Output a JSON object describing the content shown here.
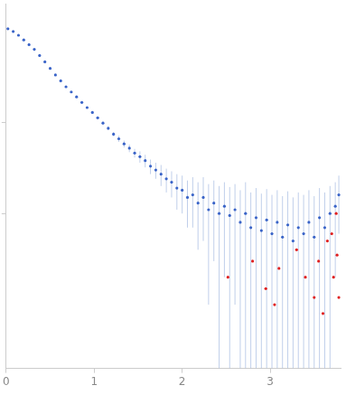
{
  "chart_data": {
    "type": "scatter",
    "xlim": [
      0,
      3.8
    ],
    "xticks": [
      0,
      1,
      2,
      3
    ],
    "ylim": [
      0.002,
      20
    ],
    "yticks": [
      0.1,
      1
    ],
    "log": "y",
    "grid": false,
    "tick_labels": "x",
    "series": [
      {
        "color": "#3a64c8",
        "marker": "circle",
        "x": [
          0.02,
          0.08,
          0.14,
          0.2,
          0.26,
          0.32,
          0.38,
          0.44,
          0.5,
          0.56,
          0.62,
          0.68,
          0.74,
          0.8,
          0.86,
          0.92,
          0.98,
          1.04,
          1.1,
          1.16,
          1.22,
          1.28,
          1.34,
          1.4,
          1.46,
          1.52,
          1.58,
          1.64,
          1.7,
          1.76,
          1.82,
          1.88,
          1.94,
          2.0,
          2.06,
          2.12,
          2.18,
          2.24,
          2.3,
          2.36,
          2.42,
          2.48,
          2.54,
          2.6,
          2.66,
          2.72,
          2.78,
          2.84,
          2.9,
          2.96,
          3.02,
          3.08,
          3.14,
          3.2,
          3.26,
          3.32,
          3.38,
          3.44,
          3.5,
          3.56,
          3.62,
          3.68,
          3.74,
          3.78
        ],
        "values": [
          10.6,
          9.9,
          9.0,
          8.0,
          7.1,
          6.3,
          5.4,
          4.6,
          3.9,
          3.3,
          2.85,
          2.45,
          2.15,
          1.9,
          1.65,
          1.45,
          1.28,
          1.12,
          0.98,
          0.86,
          0.74,
          0.66,
          0.58,
          0.52,
          0.46,
          0.42,
          0.38,
          0.33,
          0.3,
          0.27,
          0.24,
          0.22,
          0.19,
          0.18,
          0.15,
          0.16,
          0.13,
          0.15,
          0.11,
          0.13,
          0.1,
          0.12,
          0.095,
          0.11,
          0.08,
          0.1,
          0.07,
          0.09,
          0.065,
          0.085,
          0.06,
          0.08,
          0.055,
          0.075,
          0.05,
          0.07,
          0.06,
          0.08,
          0.055,
          0.09,
          0.07,
          0.1,
          0.12,
          0.16
        ],
        "errors": [
          0.1,
          0.08,
          0.07,
          0.06,
          0.05,
          0.05,
          0.04,
          0.04,
          0.03,
          0.03,
          0.03,
          0.03,
          0.03,
          0.03,
          0.03,
          0.03,
          0.03,
          0.03,
          0.04,
          0.04,
          0.04,
          0.05,
          0.05,
          0.05,
          0.05,
          0.06,
          0.06,
          0.06,
          0.06,
          0.07,
          0.07,
          0.07,
          0.08,
          0.08,
          0.08,
          0.09,
          0.09,
          0.1,
          0.1,
          0.1,
          0.1,
          0.1,
          0.1,
          0.1,
          0.1,
          0.12,
          0.1,
          0.1,
          0.1,
          0.1,
          0.1,
          0.1,
          0.1,
          0.1,
          0.1,
          0.1,
          0.1,
          0.1,
          0.1,
          0.1,
          0.1,
          0.1,
          0.1,
          0.1
        ]
      },
      {
        "color": "#e02020",
        "marker": "circle",
        "x": [
          2.52,
          2.8,
          2.95,
          3.05,
          3.1,
          3.3,
          3.4,
          3.5,
          3.55,
          3.6,
          3.65,
          3.7,
          3.72,
          3.75,
          3.76,
          3.78
        ],
        "values": [
          0.02,
          0.03,
          0.015,
          0.01,
          0.025,
          0.04,
          0.02,
          0.012,
          0.03,
          0.008,
          0.05,
          0.06,
          0.02,
          0.1,
          0.035,
          0.012
        ]
      }
    ]
  }
}
